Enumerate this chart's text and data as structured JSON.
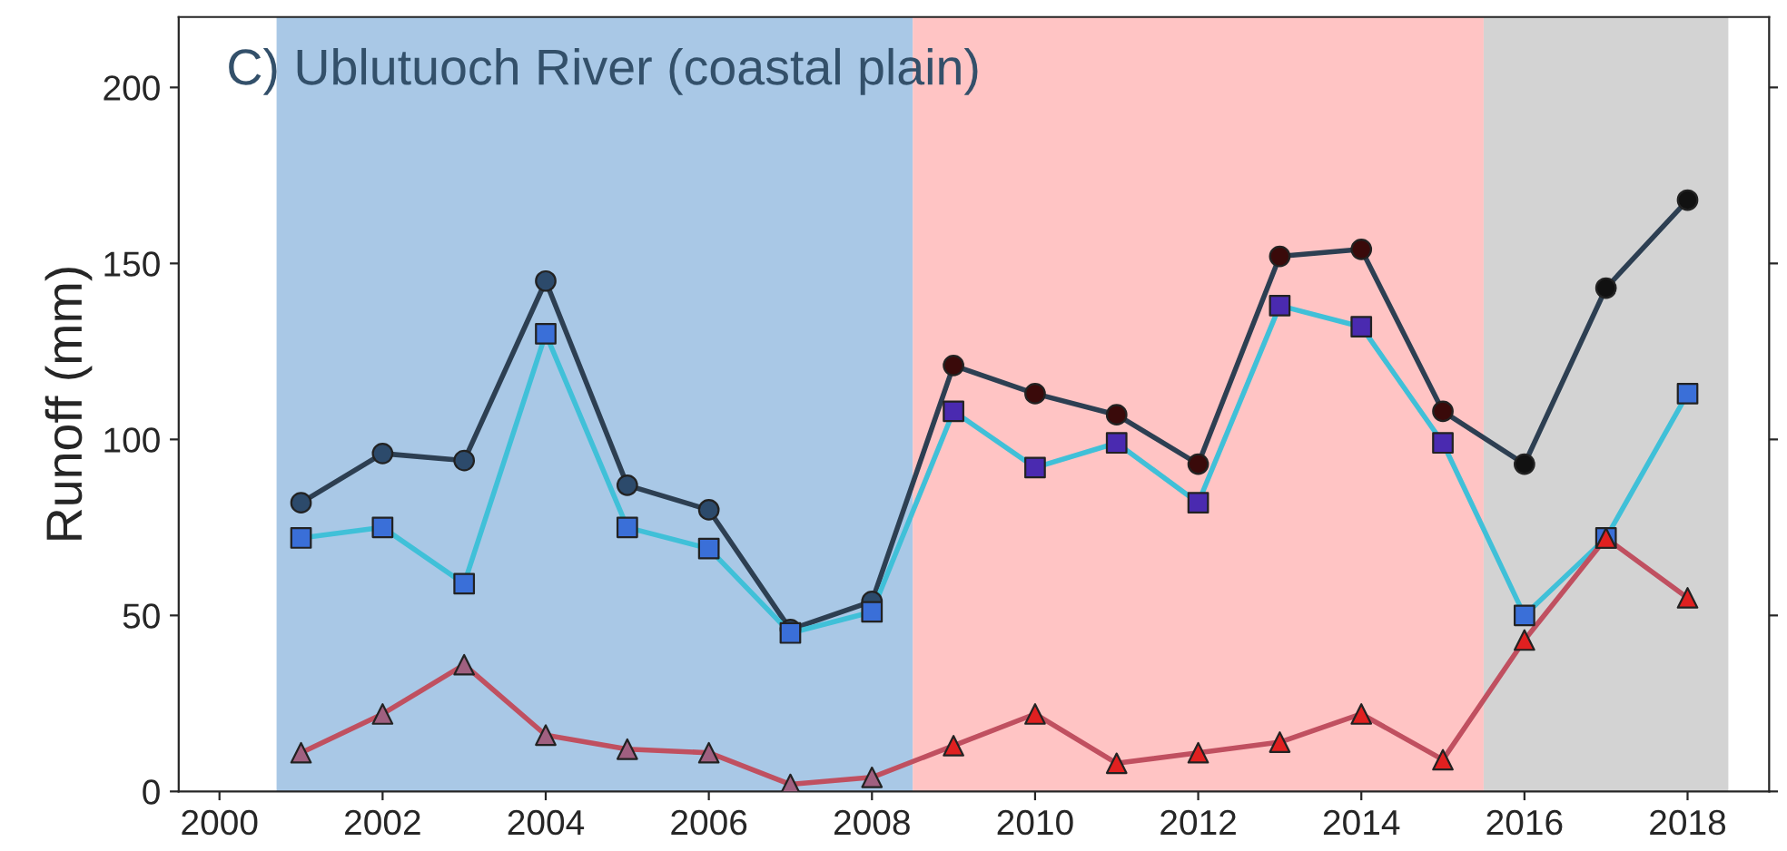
{
  "chart_data": {
    "type": "line",
    "title": "C) Ublutuoch River (coastal plain)",
    "ylabel": "Runoff (mm)",
    "x": [
      2001,
      2002,
      2003,
      2004,
      2005,
      2006,
      2007,
      2008,
      2009,
      2010,
      2011,
      2012,
      2013,
      2014,
      2015,
      2016,
      2017,
      2018
    ],
    "series": [
      {
        "color": "#2d3f52",
        "marker": "circle",
        "colors": [
          "#2c4a6b",
          "#2c4a6b",
          "#2c4a6b",
          "#2c4a6b",
          "#2c4a6b",
          "#2c4a6b",
          "#2c4a6b",
          "#2c4a6b",
          "#3a0a0a",
          "#3a0a0a",
          "#3a0a0a",
          "#3a0a0a",
          "#3a0a0a",
          "#3a0a0a",
          "#3a0a0a",
          "#111111",
          "#111111",
          "#111111"
        ],
        "values": [
          82,
          96,
          94,
          145,
          87,
          80,
          46,
          54,
          121,
          113,
          107,
          93,
          152,
          154,
          108,
          93,
          143,
          168
        ]
      },
      {
        "color": "#40c0d8",
        "marker": "square",
        "colors": [
          "#3a6fd8",
          "#3a6fd8",
          "#3a6fd8",
          "#3a6fd8",
          "#3a6fd8",
          "#3a6fd8",
          "#3a6fd8",
          "#3a6fd8",
          "#4a2ab0",
          "#4a2ab0",
          "#4a2ab0",
          "#4a2ab0",
          "#4a2ab0",
          "#4a2ab0",
          "#4a2ab0",
          "#3a6fd8",
          "#3a6fd8",
          "#3a6fd8"
        ],
        "values": [
          72,
          75,
          59,
          130,
          75,
          69,
          45,
          51,
          108,
          92,
          99,
          82,
          138,
          132,
          99,
          50,
          72,
          113
        ]
      },
      {
        "color": "#c05060",
        "marker": "triangle",
        "colors": [
          "#a06080",
          "#a06080",
          "#a06080",
          "#a06080",
          "#a06080",
          "#a06080",
          "#a06080",
          "#a06080",
          "#e02020",
          "#e02020",
          "#e02020",
          "#e02020",
          "#e02020",
          "#e02020",
          "#e02020",
          "#e02020",
          "#e02020",
          "#e02020"
        ],
        "values": [
          11,
          22,
          36,
          16,
          12,
          11,
          2,
          4,
          13,
          22,
          8,
          11,
          14,
          22,
          9,
          43,
          72,
          55
        ]
      }
    ],
    "bands": [
      {
        "axis": "x",
        "from": 2000.7,
        "to": 2008.5,
        "color": "#a9c8e6"
      },
      {
        "axis": "x",
        "from": 2008.5,
        "to": 2015.5,
        "color": "#ffc4c4"
      },
      {
        "axis": "x",
        "from": 2015.5,
        "to": 2018.5,
        "color": "#d3d3d3"
      }
    ],
    "xlim": [
      1999.5,
      2019
    ],
    "xticks": [
      2000,
      2002,
      2004,
      2006,
      2008,
      2010,
      2012,
      2014,
      2016,
      2018
    ],
    "ylim": [
      0,
      220
    ],
    "yticks": [
      0,
      50,
      100,
      150,
      200
    ],
    "grid": false
  }
}
